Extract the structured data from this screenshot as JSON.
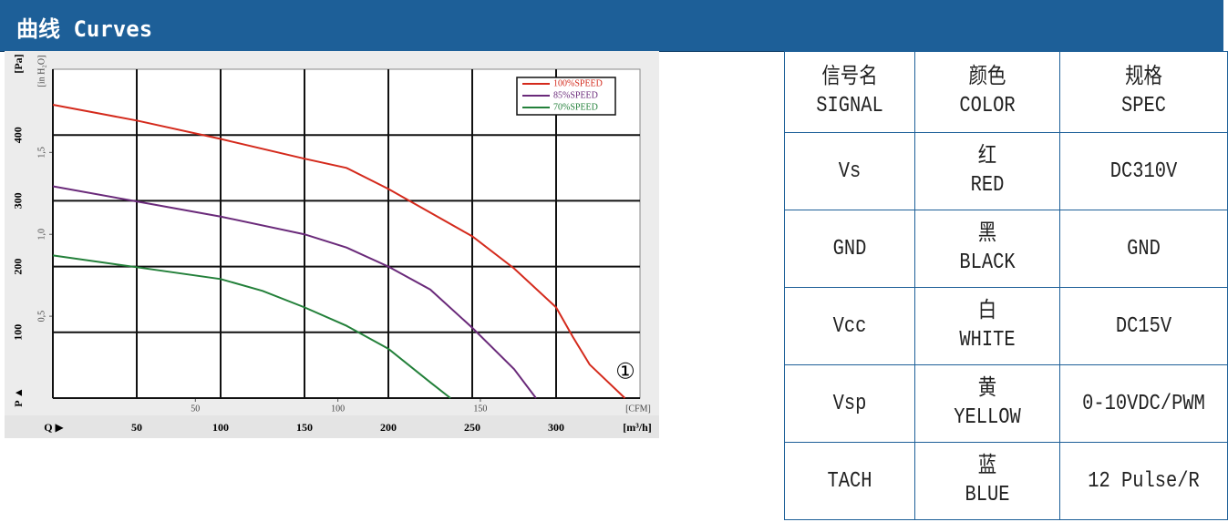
{
  "header": {
    "title": "曲线 Curves"
  },
  "chart_data": {
    "type": "line",
    "ylabel": "[Pa]",
    "y2label": "[in H₂O]",
    "xlabel": "[m³/h]",
    "x2label": "[CFM]",
    "yarrow": "P ▲",
    "xarrow": "Q ▶",
    "annotation": "①",
    "xlim": [
      0,
      350
    ],
    "ylim": [
      0,
      500
    ],
    "x2lim": [
      0,
      206
    ],
    "y2lim": [
      0,
      2.008
    ],
    "xticks": [
      50,
      100,
      150,
      200,
      250,
      300
    ],
    "yticks": [
      100,
      200,
      300,
      400
    ],
    "x2ticks": [
      50,
      100,
      150
    ],
    "y2ticks": [
      {
        "value": 0.5,
        "label": "0,5"
      },
      {
        "value": 1,
        "label": "1,0"
      },
      {
        "value": 1.5,
        "label": "1,5"
      }
    ],
    "grid": true,
    "legend": "upper right",
    "series": [
      {
        "name": "100%SPEED",
        "color": "#d42a1c",
        "x": [
          0,
          50,
          100,
          150,
          175,
          200,
          250,
          275,
          300,
          310,
          320,
          341
        ],
        "values": [
          446,
          422,
          394,
          364,
          350,
          318,
          246,
          197,
          138,
          93,
          51,
          0
        ]
      },
      {
        "name": "85%SPEED",
        "color": "#6a2a7a",
        "x": [
          0,
          50,
          100,
          150,
          175,
          200,
          225,
          250,
          275,
          288
        ],
        "values": [
          322,
          299,
          276,
          249,
          229,
          200,
          165,
          107,
          44,
          0
        ]
      },
      {
        "name": "70%SPEED",
        "color": "#23803a",
        "x": [
          0,
          50,
          100,
          125,
          150,
          175,
          200,
          225,
          237
        ],
        "values": [
          217,
          199,
          181,
          163,
          138,
          110,
          75,
          24,
          0
        ]
      }
    ]
  },
  "table": {
    "header": [
      [
        "信号名",
        "SIGNAL"
      ],
      [
        "颜色",
        "COLOR"
      ],
      [
        "规格",
        "SPEC"
      ]
    ],
    "rows": [
      [
        [
          "Vs"
        ],
        [
          "红",
          "RED"
        ],
        [
          "DC310V"
        ]
      ],
      [
        [
          "GND"
        ],
        [
          "黑",
          "BLACK"
        ],
        [
          "GND"
        ]
      ],
      [
        [
          "Vcc"
        ],
        [
          "白",
          "WHITE"
        ],
        [
          "DC15V"
        ]
      ],
      [
        [
          "Vsp"
        ],
        [
          "黄",
          "YELLOW"
        ],
        [
          "0-10VDC/PWM"
        ]
      ],
      [
        [
          "TACH"
        ],
        [
          "蓝",
          "BLUE"
        ],
        [
          "12 Pulse/R"
        ]
      ]
    ]
  }
}
